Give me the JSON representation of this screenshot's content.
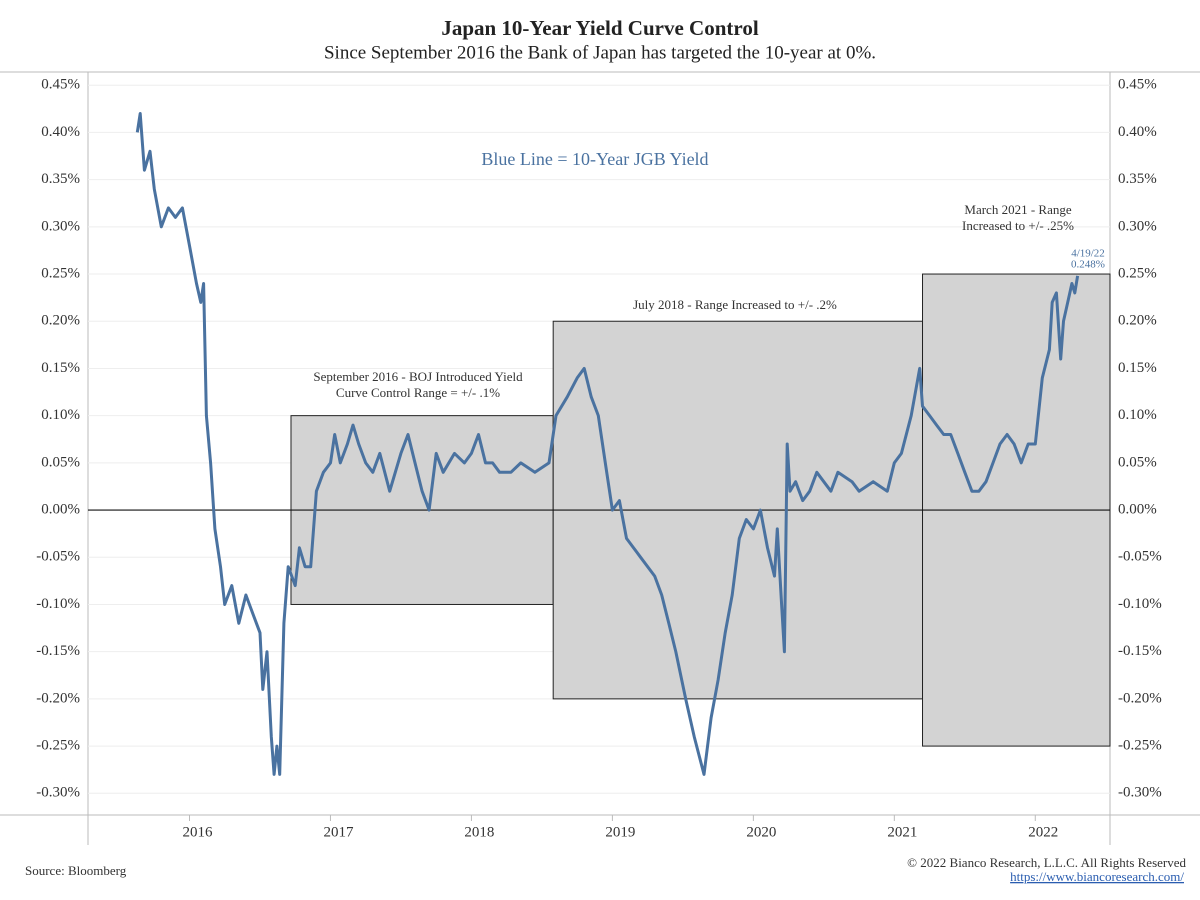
{
  "chart_data": {
    "type": "line",
    "title": "Japan 10-Year Yield Curve Control",
    "subtitle": "Since September 2016 the Bank of Japan has targeted the 10-year at 0%.",
    "legend_text": "Blue Line = 10-Year JGB Yield",
    "source": "Source: Bloomberg",
    "copyright": "© 2022 Bianco Research, L.L.C. All Rights Reserved",
    "url": "https://www.biancoresearch.com/",
    "annotations": [
      "September 2016 - BOJ Introduced Yield",
      "Curve Control Range = +/- .1%",
      "July 2018 - Range Increased to +/- .2%",
      "March 2021 - Range",
      "Increased to +/- .25%"
    ],
    "last_point": {
      "date": "4/19/22",
      "value": 0.248,
      "label": "0.248%"
    },
    "bands_color": "#d3d3d3",
    "bands": [
      {
        "x0": 2016.72,
        "x1": 2018.58,
        "low": -0.1,
        "high": 0.1
      },
      {
        "x0": 2018.58,
        "x1": 2021.2,
        "low": -0.2,
        "high": 0.2
      },
      {
        "x0": 2021.2,
        "x1": 2022.53,
        "low": -0.25,
        "high": 0.25
      }
    ],
    "xlim": [
      2015.28,
      2022.53
    ],
    "xticks": [
      2016,
      2017,
      2018,
      2019,
      2020,
      2021,
      2022
    ],
    "ylim": [
      -0.323,
      0.464
    ],
    "yticks": [
      {
        "value": 0.45,
        "label": "0.45%"
      },
      {
        "value": 0.4,
        "label": "0.40%"
      },
      {
        "value": 0.35,
        "label": "0.35%"
      },
      {
        "value": 0.3,
        "label": "0.30%"
      },
      {
        "value": 0.25,
        "label": "0.25%"
      },
      {
        "value": 0.2,
        "label": "0.20%"
      },
      {
        "value": 0.15,
        "label": "0.15%"
      },
      {
        "value": 0.1,
        "label": "0.10%"
      },
      {
        "value": 0.05,
        "label": "0.05%"
      },
      {
        "value": 0,
        "label": "0.00%"
      },
      {
        "value": -0.05,
        "label": "-0.05%"
      },
      {
        "value": -0.1,
        "label": "-0.10%"
      },
      {
        "value": -0.15,
        "label": "-0.15%"
      },
      {
        "value": -0.2,
        "label": "-0.20%"
      },
      {
        "value": -0.25,
        "label": "-0.25%"
      },
      {
        "value": -0.3,
        "label": "-0.30%"
      }
    ],
    "grid": true,
    "series": [
      {
        "name": "10-Year JGB Yield",
        "color": "#4a72a0",
        "x": [
          2015.63,
          2015.65,
          2015.68,
          2015.72,
          2015.75,
          2015.8,
          2015.85,
          2015.9,
          2015.95,
          2016.0,
          2016.05,
          2016.08,
          2016.1,
          2016.12,
          2016.15,
          2016.18,
          2016.22,
          2016.25,
          2016.3,
          2016.35,
          2016.4,
          2016.45,
          2016.5,
          2016.52,
          2016.55,
          2016.58,
          2016.6,
          2016.62,
          2016.64,
          2016.67,
          2016.7,
          2016.75,
          2016.78,
          2016.82,
          2016.86,
          2016.9,
          2016.95,
          2017.0,
          2017.03,
          2017.07,
          2017.12,
          2017.16,
          2017.2,
          2017.25,
          2017.3,
          2017.35,
          2017.42,
          2017.5,
          2017.55,
          2017.6,
          2017.65,
          2017.7,
          2017.75,
          2017.8,
          2017.88,
          2017.95,
          2018.0,
          2018.05,
          2018.1,
          2018.15,
          2018.2,
          2018.28,
          2018.35,
          2018.45,
          2018.55,
          2018.6,
          2018.68,
          2018.75,
          2018.8,
          2018.85,
          2018.9,
          2018.95,
          2019.0,
          2019.05,
          2019.1,
          2019.2,
          2019.3,
          2019.35,
          2019.4,
          2019.45,
          2019.52,
          2019.58,
          2019.65,
          2019.7,
          2019.75,
          2019.8,
          2019.85,
          2019.9,
          2019.95,
          2020.0,
          2020.05,
          2020.1,
          2020.15,
          2020.17,
          2020.2,
          2020.22,
          2020.24,
          2020.26,
          2020.3,
          2020.35,
          2020.4,
          2020.45,
          2020.5,
          2020.55,
          2020.6,
          2020.7,
          2020.75,
          2020.85,
          2020.95,
          2021.0,
          2021.05,
          2021.12,
          2021.18,
          2021.2,
          2021.25,
          2021.3,
          2021.35,
          2021.4,
          2021.45,
          2021.5,
          2021.55,
          2021.6,
          2021.65,
          2021.7,
          2021.75,
          2021.8,
          2021.85,
          2021.9,
          2021.95,
          2022.0,
          2022.05,
          2022.1,
          2022.12,
          2022.15,
          2022.18,
          2022.2,
          2022.23,
          2022.26,
          2022.28,
          2022.3
        ],
        "values": [
          0.4,
          0.42,
          0.36,
          0.38,
          0.34,
          0.3,
          0.32,
          0.31,
          0.32,
          0.28,
          0.24,
          0.22,
          0.24,
          0.1,
          0.05,
          -0.02,
          -0.06,
          -0.1,
          -0.08,
          -0.12,
          -0.09,
          -0.11,
          -0.13,
          -0.19,
          -0.15,
          -0.24,
          -0.28,
          -0.25,
          -0.28,
          -0.12,
          -0.06,
          -0.08,
          -0.04,
          -0.06,
          -0.06,
          0.02,
          0.04,
          0.05,
          0.08,
          0.05,
          0.07,
          0.09,
          0.07,
          0.05,
          0.04,
          0.06,
          0.02,
          0.06,
          0.08,
          0.05,
          0.02,
          0.0,
          0.06,
          0.04,
          0.06,
          0.05,
          0.06,
          0.08,
          0.05,
          0.05,
          0.04,
          0.04,
          0.05,
          0.04,
          0.05,
          0.1,
          0.12,
          0.14,
          0.15,
          0.12,
          0.1,
          0.05,
          0.0,
          0.01,
          -0.03,
          -0.05,
          -0.07,
          -0.09,
          -0.12,
          -0.15,
          -0.2,
          -0.24,
          -0.28,
          -0.22,
          -0.18,
          -0.13,
          -0.09,
          -0.03,
          -0.01,
          -0.02,
          0.0,
          -0.04,
          -0.07,
          -0.02,
          -0.1,
          -0.15,
          0.07,
          0.02,
          0.03,
          0.01,
          0.02,
          0.04,
          0.03,
          0.02,
          0.04,
          0.03,
          0.02,
          0.03,
          0.02,
          0.05,
          0.06,
          0.1,
          0.15,
          0.11,
          0.1,
          0.09,
          0.08,
          0.08,
          0.06,
          0.04,
          0.02,
          0.02,
          0.03,
          0.05,
          0.07,
          0.08,
          0.07,
          0.05,
          0.07,
          0.07,
          0.14,
          0.17,
          0.22,
          0.23,
          0.16,
          0.2,
          0.22,
          0.24,
          0.23,
          0.248
        ]
      }
    ]
  }
}
